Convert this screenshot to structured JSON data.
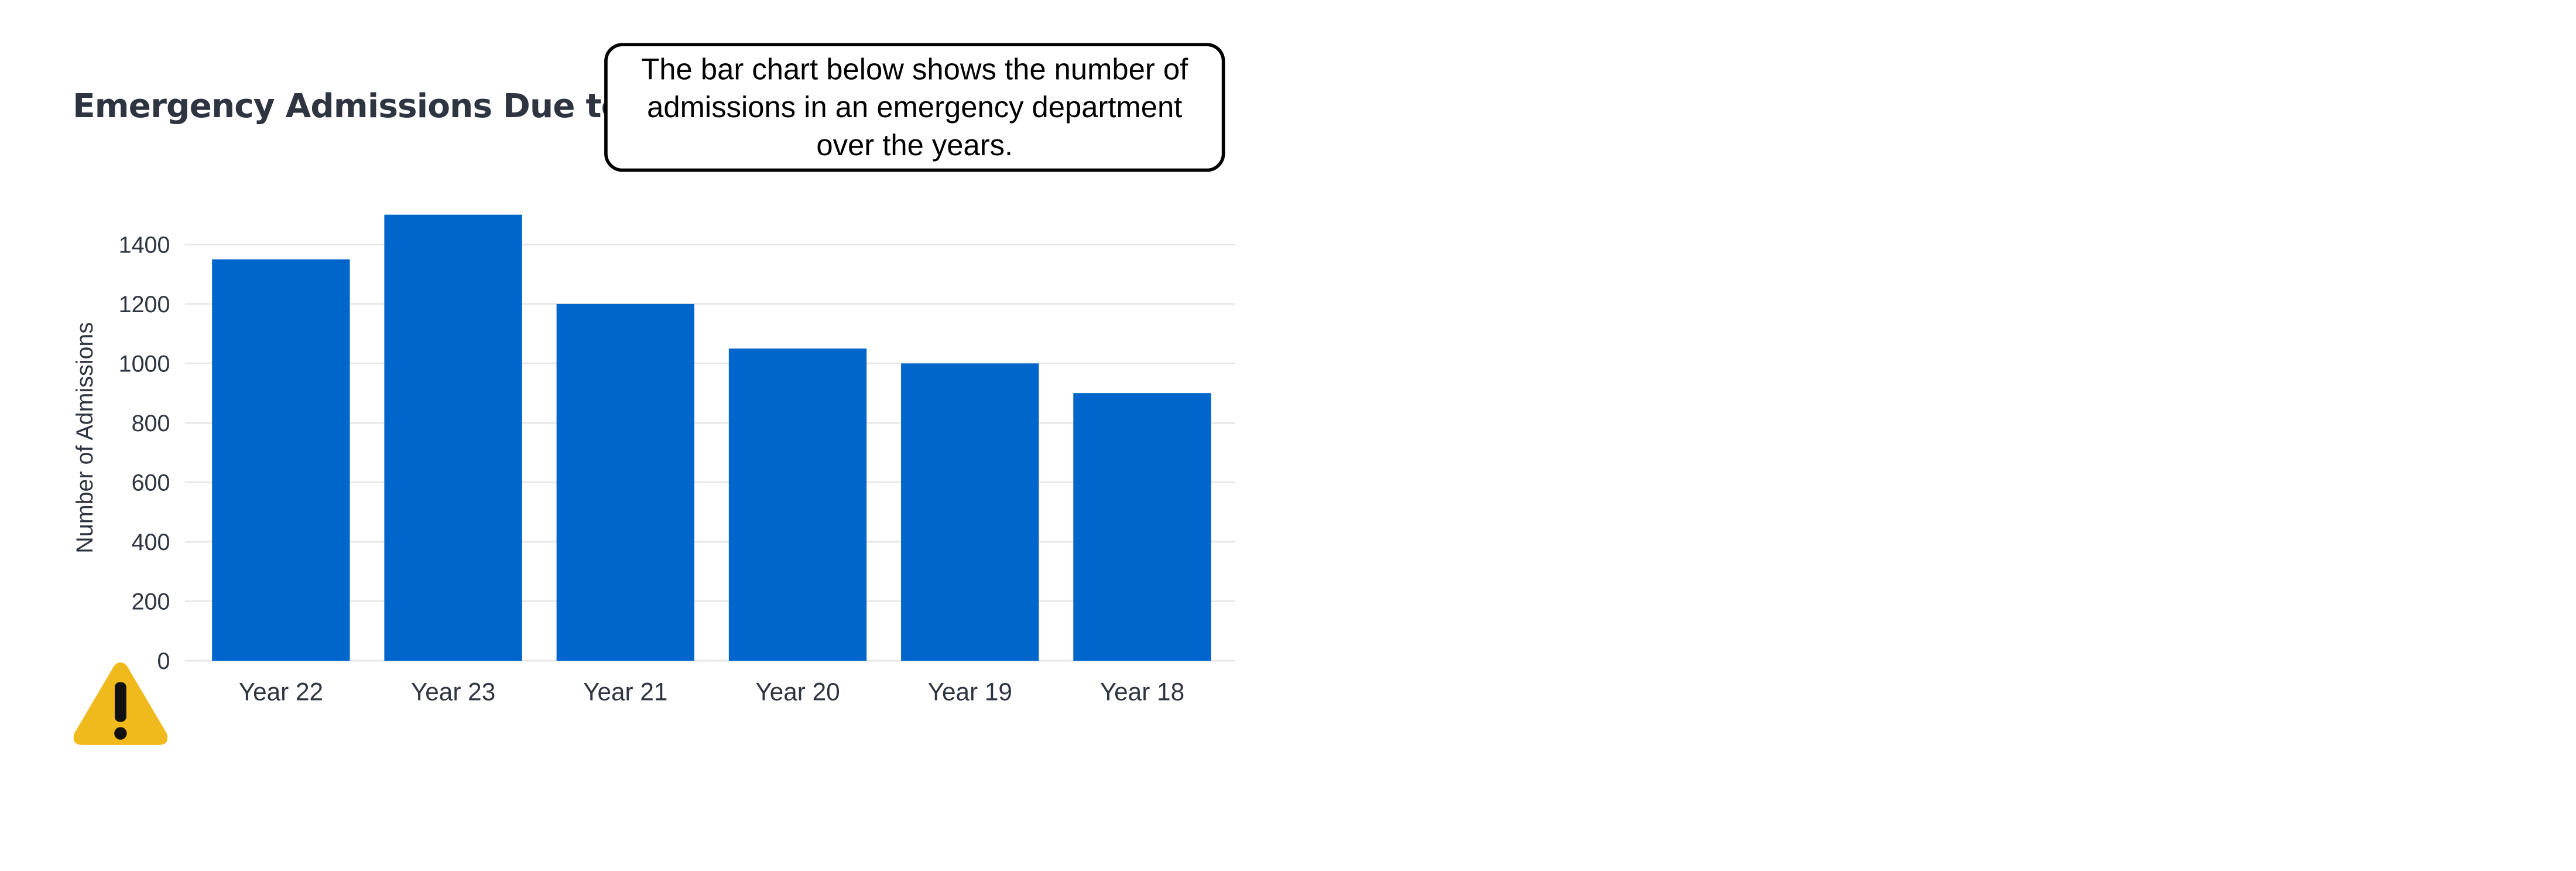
{
  "title": "Emergency Admissions Due to Flu",
  "callout": "The bar chart below shows the number of admissions in an emergency department over the years.",
  "icons": {
    "warning": "warning-triangle-icon"
  },
  "colors": {
    "bar": "#0066cc",
    "grid": "#e6e6e6",
    "text": "#2e3440",
    "warning": "#f0b91c"
  },
  "chart_data": {
    "type": "bar",
    "categories": [
      "Year 22",
      "Year 23",
      "Year 21",
      "Year 20",
      "Year 19",
      "Year 18"
    ],
    "values": [
      1350,
      1500,
      1200,
      1050,
      1000,
      900
    ],
    "ylabel": "Number of Admissions",
    "xlabel": "",
    "ylim": [
      0,
      1500
    ],
    "yticks": [
      0,
      200,
      400,
      600,
      800,
      1000,
      1200,
      1400
    ],
    "grid": true
  }
}
